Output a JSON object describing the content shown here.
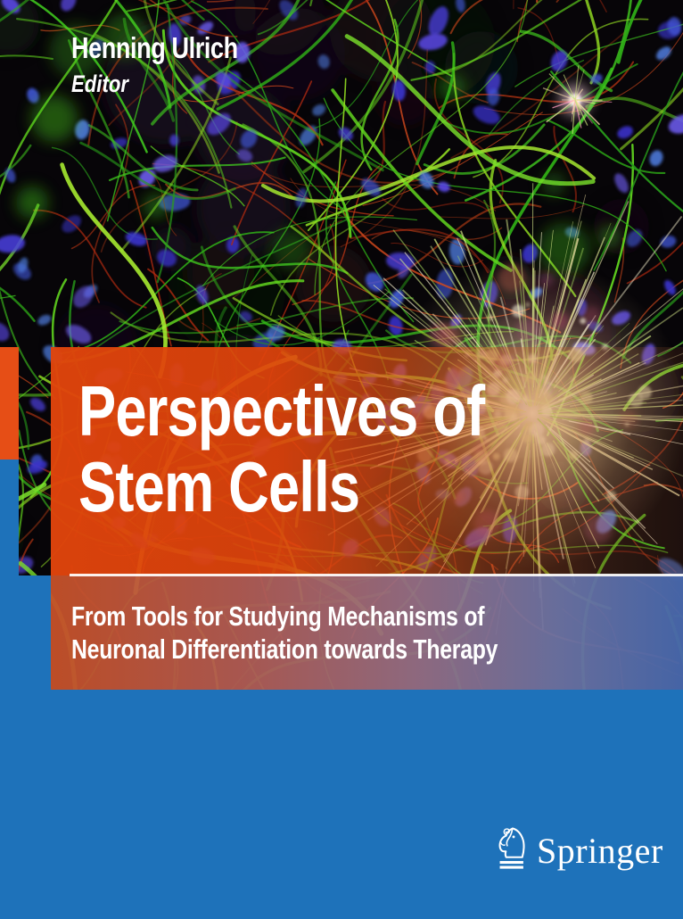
{
  "cover": {
    "editor": {
      "name": "Henning Ulrich",
      "role": "Editor"
    },
    "title": {
      "line1": "Perspectives of",
      "line2": "Stem Cells"
    },
    "subtitle": {
      "line1": "From Tools for Studying Mechanisms of",
      "line2": "Neuronal Differentiation towards Therapy"
    },
    "publisher": {
      "name": "Springer",
      "mark": "springer-horse-icon"
    },
    "artwork": "fluorescence micrograph of neural stem cells with green and red fibers, blue nuclei and a bright radial cell cluster"
  },
  "colors": {
    "springer_blue": "#1e72ba",
    "accent_orange": "#e64e16",
    "title_overlay_orange": "#e0440c",
    "subtitle_gradient_left": "#c65129",
    "subtitle_gradient_right": "#4a69ac",
    "divider_white": "#ffffff",
    "text_white": "#ffffff"
  }
}
